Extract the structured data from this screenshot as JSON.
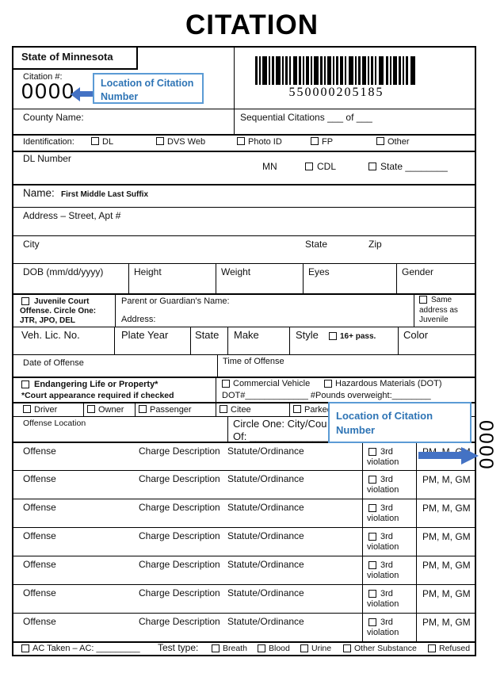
{
  "page": {
    "title": "CITATION"
  },
  "callouts": {
    "top": {
      "text": "Location of Citation Number"
    },
    "side": {
      "text": "Location of Citation Number"
    },
    "border_color": "#5b9bd5",
    "text_color": "#2e74b5",
    "arrow_color": "#4472c4"
  },
  "header": {
    "state": "State of Minnesota",
    "citation_label": "Citation #:",
    "citation_value": "0000",
    "barcode_value": "550000205185",
    "rotated_citation_value": "0000"
  },
  "county_row": {
    "county_label": "County Name:",
    "sequential_label": "Sequential Citations  ___ of ___"
  },
  "identification_row": {
    "label": "Identification:",
    "options": [
      "DL",
      "DVS Web",
      "Photo ID",
      "FP",
      "Other"
    ]
  },
  "dl_row": {
    "dl_label": "DL Number",
    "mn_label": "MN",
    "cdl_label": "CDL",
    "state_label": "State ________"
  },
  "name_row": {
    "label": "Name:",
    "hint": "First Middle Last Suffix"
  },
  "address_row": {
    "label": "Address – Street, Apt #"
  },
  "city_row": {
    "city": "City",
    "state": "State",
    "zip": "Zip"
  },
  "dob_row": {
    "labels": [
      "DOB (mm/dd/yyyy)",
      "Height",
      "Weight",
      "Eyes",
      "Gender"
    ]
  },
  "juvenile_row": {
    "juvenile_line1": "Juvenile Court",
    "juvenile_line2": "Offense.  Circle One:",
    "juvenile_line3": "JTR, JPO, DEL",
    "parent_label": "Parent or Guardian's Name:",
    "address_label": "Address:",
    "same_line1": "Same",
    "same_line2": "address as",
    "same_line3": "Juvenile"
  },
  "vehicle_row": {
    "labels": [
      "Veh. Lic. No.",
      "Plate Year",
      "State",
      "Make",
      "Style",
      "Color"
    ],
    "pass_label": "16+ pass."
  },
  "offense_datetime_row": {
    "date": "Date of Offense",
    "time": "Time of Offense"
  },
  "endangering_row": {
    "endangering": "Endangering Life or Property*",
    "court_note": "*Court appearance required if checked",
    "commercial": "Commercial Vehicle",
    "hazmat": "Hazardous Materials (DOT)",
    "dot_line": "DOT#_____________    #Pounds overweight:________"
  },
  "role_row": {
    "options": [
      "Driver",
      "Owner",
      "Passenger",
      "Citee",
      "Parked"
    ]
  },
  "location_row": {
    "label": "Offense Location",
    "circle_label": "Circle One:  City/Cou",
    "of_label": "Of: ______________"
  },
  "offense_table": {
    "rows": [
      {
        "offense": "Offense",
        "charge": "Charge Description",
        "statute": "Statute/Ordinance",
        "third": "3rd",
        "violation": "violation",
        "severity": "PM, M, GM"
      },
      {
        "offense": "Offense",
        "charge": "Charge Description",
        "statute": "Statute/Ordinance",
        "third": "3rd",
        "violation": "violation",
        "severity": "PM, M, GM"
      },
      {
        "offense": "Offense",
        "charge": "Charge Description",
        "statute": "Statute/Ordinance",
        "third": "3rd",
        "violation": "violation",
        "severity": "PM, M, GM"
      },
      {
        "offense": "Offense",
        "charge": "Charge Description",
        "statute": "Statute/Ordinance",
        "third": "3rd",
        "violation": "violation",
        "severity": "PM, M, GM"
      },
      {
        "offense": "Offense",
        "charge": "Charge Description",
        "statute": "Statute/Ordinance",
        "third": "3rd",
        "violation": "violation",
        "severity": "PM, M, GM"
      },
      {
        "offense": "Offense",
        "charge": "Charge Description",
        "statute": "Statute/Ordinance",
        "third": "3rd",
        "violation": "violation",
        "severity": "PM, M, GM"
      },
      {
        "offense": "Offense",
        "charge": "Charge Description",
        "statute": "Statute/Ordinance",
        "third": "3rd",
        "violation": "violation",
        "severity": "PM, M, GM"
      }
    ]
  },
  "ac_row": {
    "ac_label": "AC Taken – AC: _________",
    "test_label": "Test  type:",
    "options": [
      "Breath",
      "Blood",
      "Urine",
      "Other Substance",
      "Refused"
    ]
  }
}
